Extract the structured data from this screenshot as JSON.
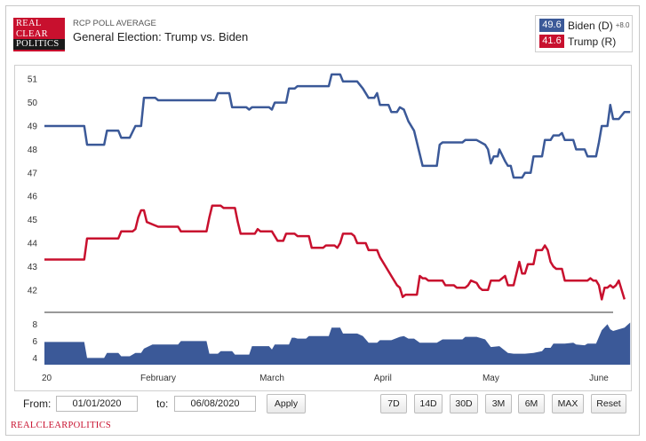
{
  "logo": {
    "line1": "REAL",
    "line2": "CLEAR",
    "line3": "POLITICS"
  },
  "header": {
    "supertitle": "RCP POLL AVERAGE",
    "title": "General Election: Trump vs. Biden"
  },
  "legend": [
    {
      "value": "49.6",
      "label": "Biden (D)",
      "change": "+8.0",
      "color": "#3b5998"
    },
    {
      "value": "41.6",
      "label": "Trump (R)",
      "change": "",
      "color": "#c8102e"
    }
  ],
  "chart_data": {
    "type": "line",
    "title": "General Election: Trump vs. Biden",
    "ylim": [
      41.5,
      51.5
    ],
    "yticks": [
      42,
      43,
      44,
      45,
      46,
      47,
      48,
      49,
      50,
      51
    ],
    "x_range": [
      0,
      1
    ],
    "x_tick_labels": [
      {
        "label": "20",
        "x": 0.0
      },
      {
        "label": "February",
        "x": 0.2
      },
      {
        "label": "March",
        "x": 0.4
      },
      {
        "label": "April",
        "x": 0.595
      },
      {
        "label": "May",
        "x": 0.785
      },
      {
        "label": "June",
        "x": 0.975
      }
    ],
    "series": [
      {
        "name": "Biden (D)",
        "color": "#3b5998",
        "points": [
          [
            0,
            49
          ],
          [
            0.07,
            49
          ],
          [
            0.075,
            48.2
          ],
          [
            0.105,
            48.2
          ],
          [
            0.11,
            48.8
          ],
          [
            0.13,
            48.8
          ],
          [
            0.135,
            48.5
          ],
          [
            0.15,
            48.5
          ],
          [
            0.16,
            49
          ],
          [
            0.17,
            49
          ],
          [
            0.175,
            50.2
          ],
          [
            0.195,
            50.2
          ],
          [
            0.2,
            50.1
          ],
          [
            0.3,
            50.1
          ],
          [
            0.305,
            50.4
          ],
          [
            0.325,
            50.4
          ],
          [
            0.33,
            49.8
          ],
          [
            0.355,
            49.8
          ],
          [
            0.36,
            49.7
          ],
          [
            0.365,
            49.8
          ],
          [
            0.395,
            49.8
          ],
          [
            0.4,
            49.7
          ],
          [
            0.405,
            50
          ],
          [
            0.425,
            50
          ],
          [
            0.43,
            50.6
          ],
          [
            0.44,
            50.6
          ],
          [
            0.445,
            50.7
          ],
          [
            0.5,
            50.7
          ],
          [
            0.505,
            51.2
          ],
          [
            0.52,
            51.2
          ],
          [
            0.525,
            50.9
          ],
          [
            0.55,
            50.9
          ],
          [
            0.56,
            50.6
          ],
          [
            0.57,
            50.2
          ],
          [
            0.58,
            50.2
          ],
          [
            0.585,
            50.4
          ],
          [
            0.59,
            49.9
          ],
          [
            0.605,
            49.9
          ],
          [
            0.61,
            49.6
          ],
          [
            0.62,
            49.6
          ],
          [
            0.625,
            49.8
          ],
          [
            0.632,
            49.7
          ],
          [
            0.64,
            49.2
          ],
          [
            0.65,
            48.8
          ],
          [
            0.66,
            47.8
          ],
          [
            0.665,
            47.3
          ],
          [
            0.69,
            47.3
          ],
          [
            0.695,
            48.2
          ],
          [
            0.7,
            48.3
          ],
          [
            0.735,
            48.3
          ],
          [
            0.74,
            48.4
          ],
          [
            0.76,
            48.4
          ],
          [
            0.775,
            48.2
          ],
          [
            0.78,
            48
          ],
          [
            0.785,
            47.4
          ],
          [
            0.79,
            47.7
          ],
          [
            0.797,
            47.7
          ],
          [
            0.8,
            48
          ],
          [
            0.81,
            47.5
          ],
          [
            0.815,
            47.3
          ],
          [
            0.82,
            47.3
          ],
          [
            0.825,
            46.8
          ],
          [
            0.84,
            46.8
          ],
          [
            0.845,
            47
          ],
          [
            0.855,
            47
          ],
          [
            0.86,
            47.7
          ],
          [
            0.875,
            47.7
          ],
          [
            0.88,
            48.4
          ],
          [
            0.89,
            48.4
          ],
          [
            0.895,
            48.6
          ],
          [
            0.905,
            48.6
          ],
          [
            0.91,
            48.7
          ],
          [
            0.915,
            48.4
          ],
          [
            0.93,
            48.4
          ],
          [
            0.935,
            48
          ],
          [
            0.95,
            48
          ],
          [
            0.955,
            47.7
          ],
          [
            0.97,
            47.7
          ],
          [
            0.975,
            48.3
          ],
          [
            0.98,
            49
          ],
          [
            0.99,
            49
          ],
          [
            0.995,
            49.9
          ],
          [
            1.0,
            49.3
          ],
          [
            1.01,
            49.3
          ],
          [
            1.02,
            49.6
          ],
          [
            1.03,
            49.6
          ]
        ]
      },
      {
        "name": "Trump (R)",
        "color": "#c8102e",
        "points": [
          [
            0,
            43.3
          ],
          [
            0.07,
            43.3
          ],
          [
            0.075,
            44.2
          ],
          [
            0.13,
            44.2
          ],
          [
            0.135,
            44.5
          ],
          [
            0.155,
            44.5
          ],
          [
            0.16,
            44.6
          ],
          [
            0.165,
            45.1
          ],
          [
            0.17,
            45.4
          ],
          [
            0.175,
            45.4
          ],
          [
            0.18,
            44.9
          ],
          [
            0.19,
            44.8
          ],
          [
            0.2,
            44.7
          ],
          [
            0.235,
            44.7
          ],
          [
            0.24,
            44.5
          ],
          [
            0.285,
            44.5
          ],
          [
            0.29,
            45.1
          ],
          [
            0.295,
            45.6
          ],
          [
            0.31,
            45.6
          ],
          [
            0.315,
            45.5
          ],
          [
            0.335,
            45.5
          ],
          [
            0.34,
            44.9
          ],
          [
            0.345,
            44.4
          ],
          [
            0.37,
            44.4
          ],
          [
            0.375,
            44.6
          ],
          [
            0.38,
            44.5
          ],
          [
            0.4,
            44.5
          ],
          [
            0.41,
            44.1
          ],
          [
            0.42,
            44.1
          ],
          [
            0.425,
            44.4
          ],
          [
            0.44,
            44.4
          ],
          [
            0.445,
            44.3
          ],
          [
            0.465,
            44.3
          ],
          [
            0.47,
            43.8
          ],
          [
            0.49,
            43.8
          ],
          [
            0.495,
            43.9
          ],
          [
            0.51,
            43.9
          ],
          [
            0.515,
            43.8
          ],
          [
            0.52,
            44
          ],
          [
            0.525,
            44.4
          ],
          [
            0.54,
            44.4
          ],
          [
            0.545,
            44.3
          ],
          [
            0.55,
            44
          ],
          [
            0.565,
            44
          ],
          [
            0.57,
            43.7
          ],
          [
            0.585,
            43.7
          ],
          [
            0.59,
            43.4
          ],
          [
            0.6,
            43
          ],
          [
            0.61,
            42.6
          ],
          [
            0.62,
            42.2
          ],
          [
            0.625,
            42.1
          ],
          [
            0.63,
            41.7
          ],
          [
            0.635,
            41.8
          ],
          [
            0.655,
            41.8
          ],
          [
            0.66,
            42.6
          ],
          [
            0.665,
            42.5
          ],
          [
            0.67,
            42.5
          ],
          [
            0.675,
            42.4
          ],
          [
            0.7,
            42.4
          ],
          [
            0.705,
            42.2
          ],
          [
            0.72,
            42.2
          ],
          [
            0.725,
            42.1
          ],
          [
            0.74,
            42.1
          ],
          [
            0.745,
            42.2
          ],
          [
            0.75,
            42.4
          ],
          [
            0.76,
            42.3
          ],
          [
            0.765,
            42.1
          ],
          [
            0.77,
            42
          ],
          [
            0.78,
            42
          ],
          [
            0.785,
            42.4
          ],
          [
            0.8,
            42.4
          ],
          [
            0.81,
            42.6
          ],
          [
            0.815,
            42.2
          ],
          [
            0.825,
            42.2
          ],
          [
            0.835,
            43.2
          ],
          [
            0.84,
            42.7
          ],
          [
            0.845,
            42.7
          ],
          [
            0.85,
            43.1
          ],
          [
            0.86,
            43.1
          ],
          [
            0.865,
            43.7
          ],
          [
            0.875,
            43.7
          ],
          [
            0.88,
            43.9
          ],
          [
            0.885,
            43.7
          ],
          [
            0.89,
            43.2
          ],
          [
            0.895,
            43
          ],
          [
            0.9,
            42.9
          ],
          [
            0.91,
            42.9
          ],
          [
            0.915,
            42.4
          ],
          [
            0.955,
            42.4
          ],
          [
            0.96,
            42.5
          ],
          [
            0.965,
            42.4
          ],
          [
            0.97,
            42.4
          ],
          [
            0.975,
            42.2
          ],
          [
            0.98,
            41.6
          ],
          [
            0.985,
            42.1
          ],
          [
            0.99,
            42.1
          ],
          [
            0.995,
            42.2
          ],
          [
            1.0,
            42.1
          ],
          [
            1.005,
            42.2
          ],
          [
            1.01,
            42.4
          ],
          [
            1.015,
            42
          ],
          [
            1.02,
            41.6
          ]
        ]
      }
    ],
    "navigator": {
      "yticks": [
        4,
        6,
        8
      ],
      "ylim": [
        3.2,
        9.2
      ],
      "area": [
        [
          0,
          5.9
        ],
        [
          0.07,
          5.9
        ],
        [
          0.075,
          4
        ],
        [
          0.105,
          4
        ],
        [
          0.11,
          4.6
        ],
        [
          0.13,
          4.6
        ],
        [
          0.135,
          4.2
        ],
        [
          0.15,
          4.2
        ],
        [
          0.16,
          4.6
        ],
        [
          0.17,
          4.6
        ],
        [
          0.175,
          5.1
        ],
        [
          0.19,
          5.6
        ],
        [
          0.235,
          5.6
        ],
        [
          0.24,
          6
        ],
        [
          0.285,
          6
        ],
        [
          0.29,
          4.5
        ],
        [
          0.305,
          4.5
        ],
        [
          0.31,
          4.8
        ],
        [
          0.33,
          4.8
        ],
        [
          0.335,
          4.4
        ],
        [
          0.36,
          4.4
        ],
        [
          0.365,
          5.4
        ],
        [
          0.395,
          5.4
        ],
        [
          0.4,
          5
        ],
        [
          0.405,
          5.6
        ],
        [
          0.43,
          5.6
        ],
        [
          0.435,
          6.4
        ],
        [
          0.44,
          6.4
        ],
        [
          0.445,
          6.3
        ],
        [
          0.46,
          6.3
        ],
        [
          0.465,
          6.6
        ],
        [
          0.5,
          6.6
        ],
        [
          0.505,
          7.6
        ],
        [
          0.52,
          7.6
        ],
        [
          0.525,
          6.9
        ],
        [
          0.55,
          6.9
        ],
        [
          0.56,
          6.6
        ],
        [
          0.57,
          5.8
        ],
        [
          0.585,
          5.8
        ],
        [
          0.59,
          6.1
        ],
        [
          0.605,
          6.1
        ],
        [
          0.61,
          6.1
        ],
        [
          0.625,
          6.5
        ],
        [
          0.632,
          6.6
        ],
        [
          0.64,
          6.3
        ],
        [
          0.65,
          6.3
        ],
        [
          0.66,
          5.8
        ],
        [
          0.69,
          5.8
        ],
        [
          0.695,
          6
        ],
        [
          0.7,
          6.2
        ],
        [
          0.735,
          6.2
        ],
        [
          0.74,
          6.5
        ],
        [
          0.76,
          6.5
        ],
        [
          0.775,
          6.2
        ],
        [
          0.785,
          5.3
        ],
        [
          0.8,
          5.4
        ],
        [
          0.815,
          4.6
        ],
        [
          0.825,
          4.5
        ],
        [
          0.845,
          4.5
        ],
        [
          0.86,
          4.6
        ],
        [
          0.875,
          4.8
        ],
        [
          0.88,
          5.2
        ],
        [
          0.89,
          5.2
        ],
        [
          0.895,
          5.7
        ],
        [
          0.905,
          5.7
        ],
        [
          0.915,
          5.7
        ],
        [
          0.93,
          5.8
        ],
        [
          0.935,
          5.6
        ],
        [
          0.95,
          5.5
        ],
        [
          0.955,
          5.7
        ],
        [
          0.97,
          5.7
        ],
        [
          0.98,
          7.3
        ],
        [
          0.99,
          8
        ],
        [
          0.995,
          7.4
        ],
        [
          1.0,
          7.2
        ],
        [
          1.01,
          7.4
        ],
        [
          1.02,
          7.6
        ],
        [
          1.03,
          8.2
        ]
      ]
    }
  },
  "controls": {
    "from_label": "From:",
    "from_value": "01/01/2020",
    "to_label": "to:",
    "to_value": "06/08/2020",
    "apply": "Apply",
    "ranges": [
      "7D",
      "14D",
      "30D",
      "3M",
      "6M",
      "MAX",
      "Reset"
    ]
  },
  "footer": {
    "brand": "REALCLEARPOLITICS"
  }
}
